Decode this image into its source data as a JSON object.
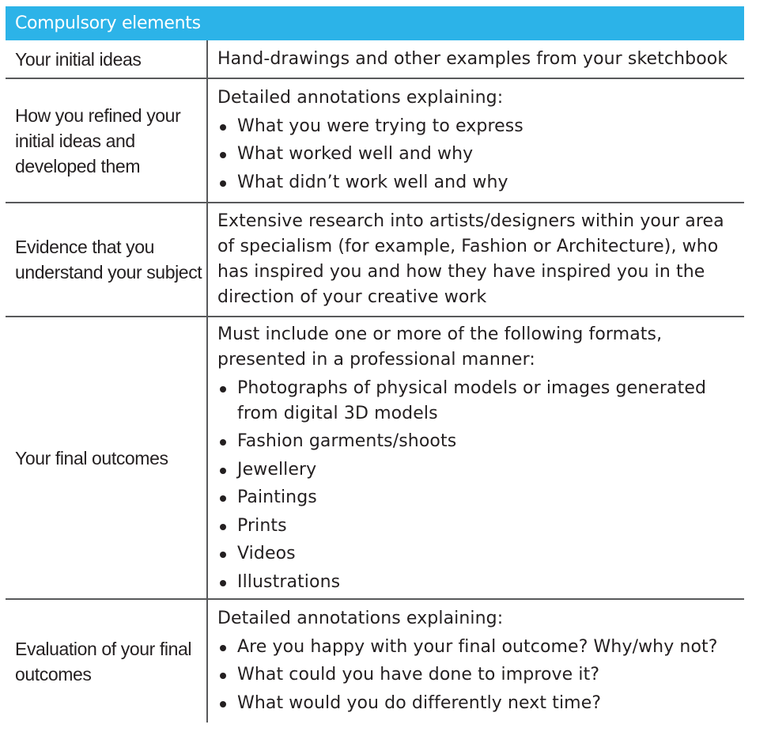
{
  "header": {
    "title": "Compulsory elements",
    "color": "#2cb3e8"
  },
  "rows": [
    {
      "label": "Your initial ideas",
      "intro": "Hand-drawings and other examples from your sketchbook",
      "bullets": []
    },
    {
      "label": "How you refined your initial ideas and developed them",
      "intro": "Detailed annotations explaining:",
      "bullets": [
        "What you were trying to express",
        "What worked well and why",
        "What didn’t work well and why"
      ]
    },
    {
      "label": "Evidence that you understand your subject",
      "intro": "Extensive research into artists/designers within your area of specialism (for example, Fashion or Architecture), who has inspired you and how they have inspired you in the direction of your creative work",
      "bullets": []
    },
    {
      "label": "Your final outcomes",
      "intro": "Must include one or more of the following formats, presented in a professional manner:",
      "bullets": [
        "Photographs of physical models or images generated from digital 3D models",
        "Fashion garments/shoots",
        "Jewellery",
        "Paintings",
        "Prints",
        "Videos",
        "Illustrations"
      ]
    },
    {
      "label": "Evaluation of your final outcomes",
      "intro": "Detailed annotations explaining:",
      "bullets": [
        "Are you happy with your final outcome? Why/why not?",
        "What could you have done to improve it?",
        "What would you do differently next time?"
      ]
    }
  ]
}
